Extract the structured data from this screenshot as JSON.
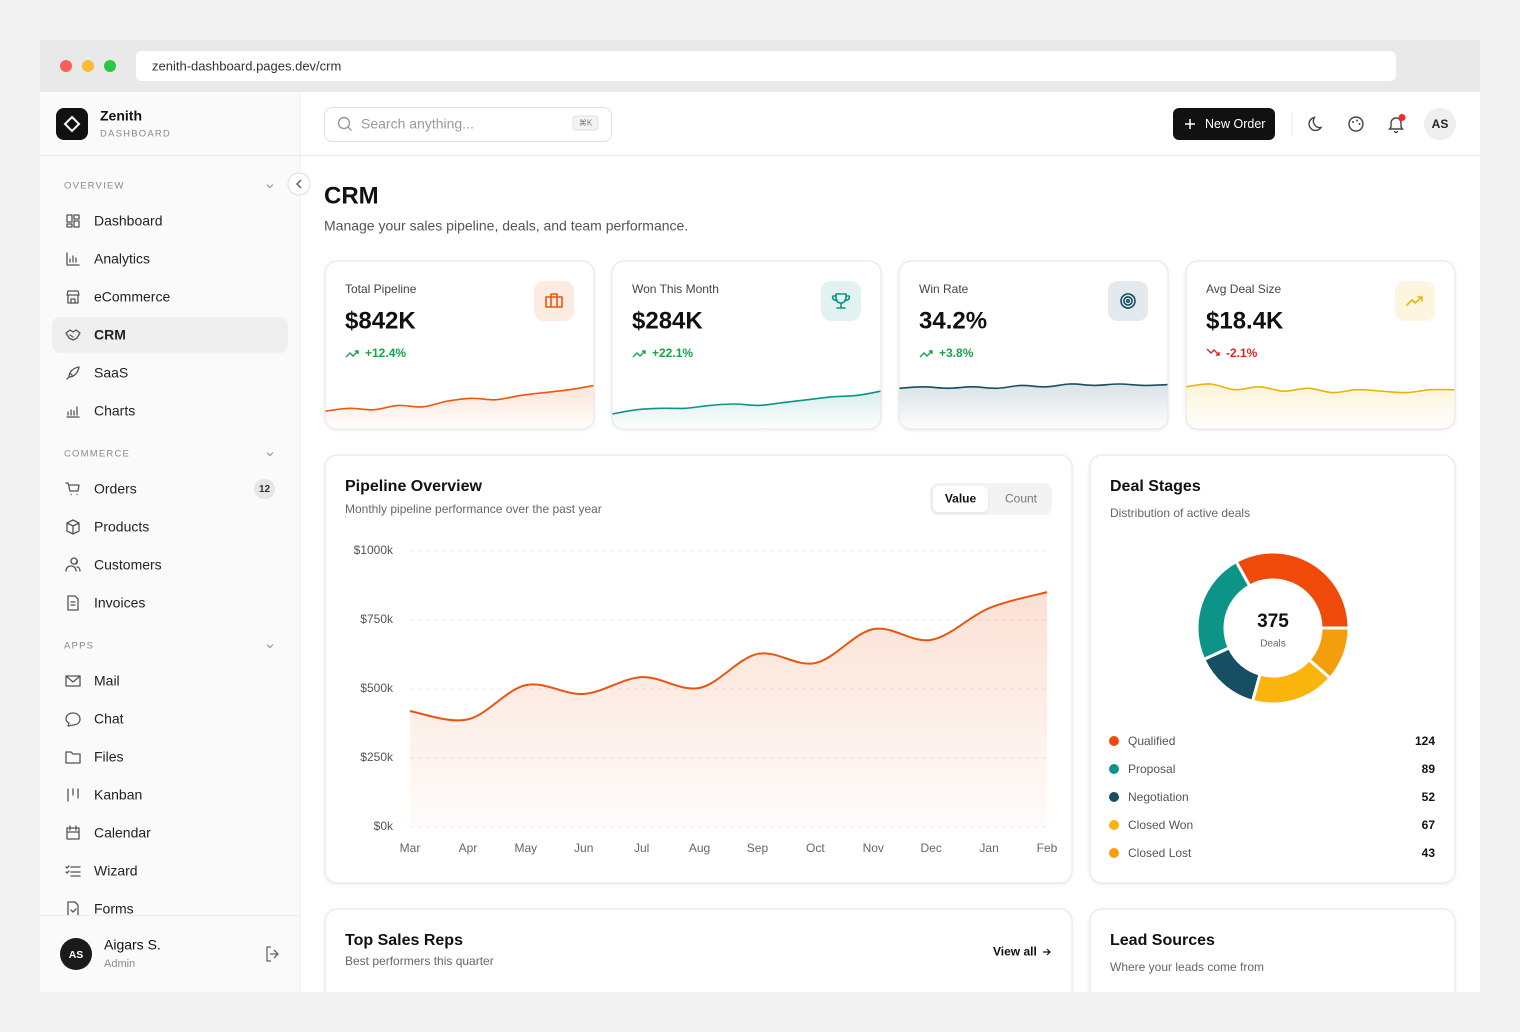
{
  "browser": {
    "url": "zenith-dashboard.pages.dev/crm"
  },
  "sidebar": {
    "brand": {
      "name": "Zenith",
      "subtitle": "DASHBOARD"
    },
    "sections": [
      {
        "title": "OVERVIEW",
        "items": [
          {
            "label": "Dashboard"
          },
          {
            "label": "Analytics"
          },
          {
            "label": "eCommerce"
          },
          {
            "label": "CRM",
            "active": true
          },
          {
            "label": "SaaS"
          },
          {
            "label": "Charts"
          }
        ]
      },
      {
        "title": "COMMERCE",
        "items": [
          {
            "label": "Orders",
            "badge": 12
          },
          {
            "label": "Products"
          },
          {
            "label": "Customers"
          },
          {
            "label": "Invoices"
          }
        ]
      },
      {
        "title": "APPS",
        "items": [
          {
            "label": "Mail"
          },
          {
            "label": "Chat"
          },
          {
            "label": "Files"
          },
          {
            "label": "Kanban"
          },
          {
            "label": "Calendar"
          },
          {
            "label": "Wizard"
          },
          {
            "label": "Forms"
          }
        ]
      }
    ],
    "user": {
      "initials": "AS",
      "name": "Aigars S.",
      "role": "Admin"
    }
  },
  "header": {
    "search_placeholder": "Search anything...",
    "shortcut": "⌘K",
    "button": "New Order",
    "avatar": "AS"
  },
  "page": {
    "title": "CRM",
    "subtitle": "Manage your sales pipeline, deals, and team performance."
  },
  "kpis": [
    {
      "label": "Total Pipeline",
      "value": "$842K",
      "change": "+12.4%",
      "trend": "up",
      "color": "#ea580c",
      "sparkline": [
        12,
        13,
        12.5,
        14,
        13.5,
        15.5,
        16.5,
        16,
        17.5,
        18.5,
        19.5,
        21
      ]
    },
    {
      "label": "Won This Month",
      "value": "$284K",
      "change": "+22.1%",
      "trend": "up",
      "color": "#0d9488",
      "sparkline": [
        11,
        12.5,
        13,
        13,
        14,
        14.5,
        14,
        15,
        16,
        17,
        17.5,
        19
      ]
    },
    {
      "label": "Win Rate",
      "value": "34.2%",
      "change": "+3.8%",
      "trend": "up",
      "color": "#164e63",
      "sparkline": [
        20,
        20.5,
        20,
        20.5,
        20,
        21,
        20.5,
        21.5,
        21,
        21.5,
        21,
        21.3
      ]
    },
    {
      "label": "Avg Deal Size",
      "value": "$18.4K",
      "change": "-2.1%",
      "trend": "down",
      "color": "#eab308",
      "sparkline": [
        20.5,
        21.5,
        19.5,
        20.5,
        19,
        20,
        18.5,
        19.5,
        19,
        18.5,
        19.5,
        19.5
      ]
    }
  ],
  "pipeline": {
    "title": "Pipeline Overview",
    "subtitle": "Monthly pipeline performance over the past year",
    "tabs": [
      "Value",
      "Count"
    ],
    "chart_data": {
      "type": "area",
      "categories": [
        "Mar",
        "Apr",
        "May",
        "Jun",
        "Jul",
        "Aug",
        "Sep",
        "Oct",
        "Nov",
        "Dec",
        "Jan",
        "Feb"
      ],
      "values": [
        420,
        390,
        514,
        482,
        543,
        504,
        627,
        594,
        717,
        678,
        793,
        851
      ],
      "color": "#e8550f",
      "ylim": [
        0,
        1000
      ],
      "yticks": [
        {
          "value": 0,
          "label": "$0k"
        },
        {
          "value": 250,
          "label": "$250k"
        },
        {
          "value": 500,
          "label": "$500k"
        },
        {
          "value": 750,
          "label": "$750k"
        },
        {
          "value": 1000,
          "label": "$1000k"
        }
      ],
      "grid": true
    }
  },
  "deal_stages": {
    "title": "Deal Stages",
    "subtitle": "Distribution of active deals",
    "chart_data": {
      "type": "donut",
      "center_value": "375",
      "center_label": "Deals",
      "categories": [
        "Qualified",
        "Proposal",
        "Negotiation",
        "Closed Won",
        "Closed Lost"
      ],
      "values": [
        124,
        89,
        52,
        67,
        43
      ],
      "colors": [
        "#ef4a0a",
        "#0d9488",
        "#164e63",
        "#fbb40c",
        "#f59e0b"
      ]
    }
  },
  "top_sales_reps": {
    "title": "Top Sales Reps",
    "subtitle": "Best performers this quarter",
    "link": "View all"
  },
  "lead_sources": {
    "title": "Lead Sources",
    "subtitle": "Where your leads come from"
  }
}
